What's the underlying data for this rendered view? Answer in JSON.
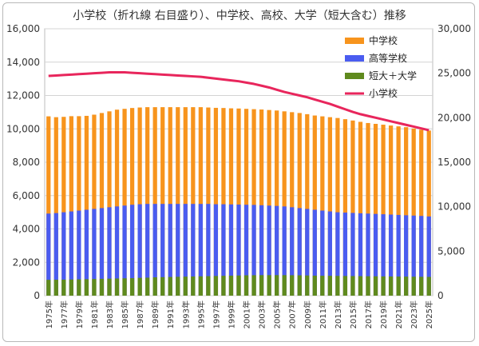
{
  "chart_data": {
    "type": "bar",
    "title": "小学校（折れ線 右目盛り）、中学校、高校、大学（短大含む）推移",
    "categories": [
      "1975年",
      "1976年",
      "1977年",
      "1978年",
      "1979年",
      "1980年",
      "1981年",
      "1982年",
      "1983年",
      "1984年",
      "1985年",
      "1986年",
      "1987年",
      "1988年",
      "1989年",
      "1990年",
      "1991年",
      "1992年",
      "1993年",
      "1994年",
      "1995年",
      "1996年",
      "1997年",
      "1998年",
      "1999年",
      "2000年",
      "2001年",
      "2002年",
      "2003年",
      "2004年",
      "2005年",
      "2006年",
      "2007年",
      "2008年",
      "2009年",
      "2010年",
      "2011年",
      "2012年",
      "2013年",
      "2014年",
      "2015年",
      "2016年",
      "2017年",
      "2018年",
      "2019年",
      "2020年",
      "2021年",
      "2022年",
      "2023年",
      "2024年",
      "2025年"
    ],
    "x_tick_labels": [
      "1975年",
      "1977年",
      "1979年",
      "1981年",
      "1983年",
      "1985年",
      "1987年",
      "1989年",
      "1991年",
      "1993年",
      "1995年",
      "1997年",
      "1999年",
      "2001年",
      "2003年",
      "2005年",
      "2007年",
      "2009年",
      "2011年",
      "2013年",
      "2015年",
      "2017年",
      "2019年",
      "2021年",
      "2023年",
      "2025年"
    ],
    "left_axis": {
      "ylim": [
        0,
        16000
      ],
      "ticks": [
        "0",
        "2,000",
        "4,000",
        "6,000",
        "8,000",
        "10,000",
        "12,000",
        "14,000",
        "16,000"
      ]
    },
    "right_axis": {
      "ylim": [
        0,
        30000
      ],
      "ticks": [
        "0",
        "5,000",
        "10,000",
        "15,000",
        "20,000",
        "25,000",
        "30,000"
      ]
    },
    "legend_position": "top-right",
    "series": [
      {
        "name": "中学校",
        "kind": "bar",
        "axis": "left",
        "color": "#f7941d",
        "values": [
          10750,
          10700,
          10720,
          10760,
          10760,
          10780,
          10850,
          10950,
          11050,
          11150,
          11200,
          11250,
          11280,
          11300,
          11300,
          11300,
          11300,
          11300,
          11300,
          11300,
          11300,
          11280,
          11260,
          11250,
          11230,
          11220,
          11200,
          11180,
          11160,
          11130,
          11100,
          11050,
          11000,
          10950,
          10880,
          10800,
          10750,
          10700,
          10650,
          10580,
          10500,
          10420,
          10350,
          10300,
          10250,
          10200,
          10150,
          10100,
          10020,
          9950,
          9900
        ]
      },
      {
        "name": "高等学校",
        "kind": "bar",
        "axis": "left",
        "color": "#4a5cf0",
        "values": [
          4920,
          4950,
          5000,
          5050,
          5100,
          5150,
          5200,
          5250,
          5300,
          5350,
          5400,
          5450,
          5480,
          5500,
          5500,
          5500,
          5500,
          5500,
          5500,
          5500,
          5500,
          5500,
          5480,
          5480,
          5470,
          5460,
          5450,
          5440,
          5420,
          5400,
          5380,
          5350,
          5300,
          5250,
          5200,
          5150,
          5100,
          5050,
          5000,
          4980,
          4960,
          4940,
          4920,
          4900,
          4880,
          4860,
          4840,
          4820,
          4800,
          4780,
          4750
        ]
      },
      {
        "name": "短大＋大学",
        "kind": "bar",
        "axis": "left",
        "color": "#5f8a1e",
        "values": [
          950,
          955,
          960,
          970,
          980,
          990,
          1000,
          1010,
          1020,
          1030,
          1040,
          1050,
          1070,
          1080,
          1100,
          1110,
          1120,
          1130,
          1140,
          1150,
          1160,
          1170,
          1180,
          1190,
          1200,
          1210,
          1220,
          1225,
          1230,
          1230,
          1230,
          1230,
          1225,
          1220,
          1210,
          1200,
          1195,
          1190,
          1185,
          1180,
          1175,
          1170,
          1165,
          1160,
          1155,
          1150,
          1145,
          1140,
          1135,
          1130,
          1125
        ]
      },
      {
        "name": "小学校",
        "kind": "line",
        "axis": "right",
        "color": "#e8265c",
        "values": [
          24700,
          24750,
          24800,
          24850,
          24900,
          24950,
          25000,
          25050,
          25100,
          25100,
          25100,
          25050,
          25000,
          24950,
          24900,
          24850,
          24800,
          24750,
          24700,
          24650,
          24600,
          24500,
          24400,
          24300,
          24200,
          24100,
          23950,
          23800,
          23600,
          23400,
          23150,
          22900,
          22700,
          22500,
          22300,
          22050,
          21800,
          21550,
          21250,
          20950,
          20650,
          20400,
          20200,
          20000,
          19800,
          19600,
          19400,
          19200,
          19000,
          18800,
          18600
        ]
      }
    ]
  }
}
